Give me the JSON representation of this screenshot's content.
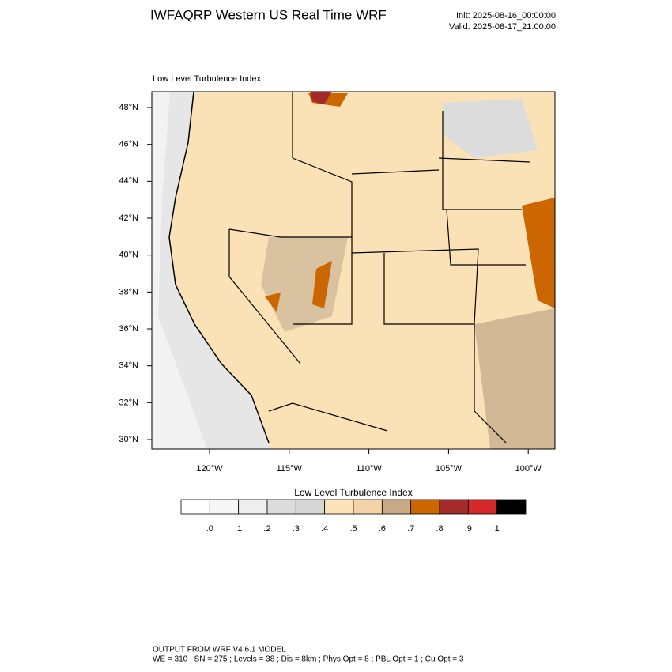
{
  "header": {
    "title": "IWFAQRP Western US Real Time WRF",
    "init": "Init: 2025-08-16_00:00:00",
    "valid": "Valid: 2025-08-17_21:00:00"
  },
  "map": {
    "subtitle": "Low Level Turbulence Index",
    "lat_labels": [
      "48°N",
      "46°N",
      "44°N",
      "42°N",
      "40°N",
      "38°N",
      "36°N",
      "34°N",
      "32°N",
      "30°N"
    ],
    "lon_labels": [
      "120°W",
      "115°W",
      "110°W",
      "105°W",
      "100°W"
    ]
  },
  "colorbar": {
    "title": "Low Level Turbulence Index",
    "colors": [
      "#ffffff",
      "#f6f6f6",
      "#eeeeee",
      "#dcdcdc",
      "#d6d6d6",
      "#fde4b8",
      "#f5d3a6",
      "#c9a886",
      "#cc6600",
      "#a52a2a",
      "#d42a2a",
      "#000000"
    ],
    "labels": [
      ".0",
      ".1",
      ".2",
      ".3",
      ".4",
      ".5",
      ".6",
      ".7",
      ".8",
      ".9",
      "1"
    ]
  },
  "footer": {
    "line1": "OUTPUT FROM WRF V4.6.1 MODEL",
    "line2": "WE = 310 ; SN = 275 ; Levels = 38 ; Dis = 8km ; Phys Opt = 8 ; PBL Opt = 1 ; Cu Opt = 3"
  }
}
